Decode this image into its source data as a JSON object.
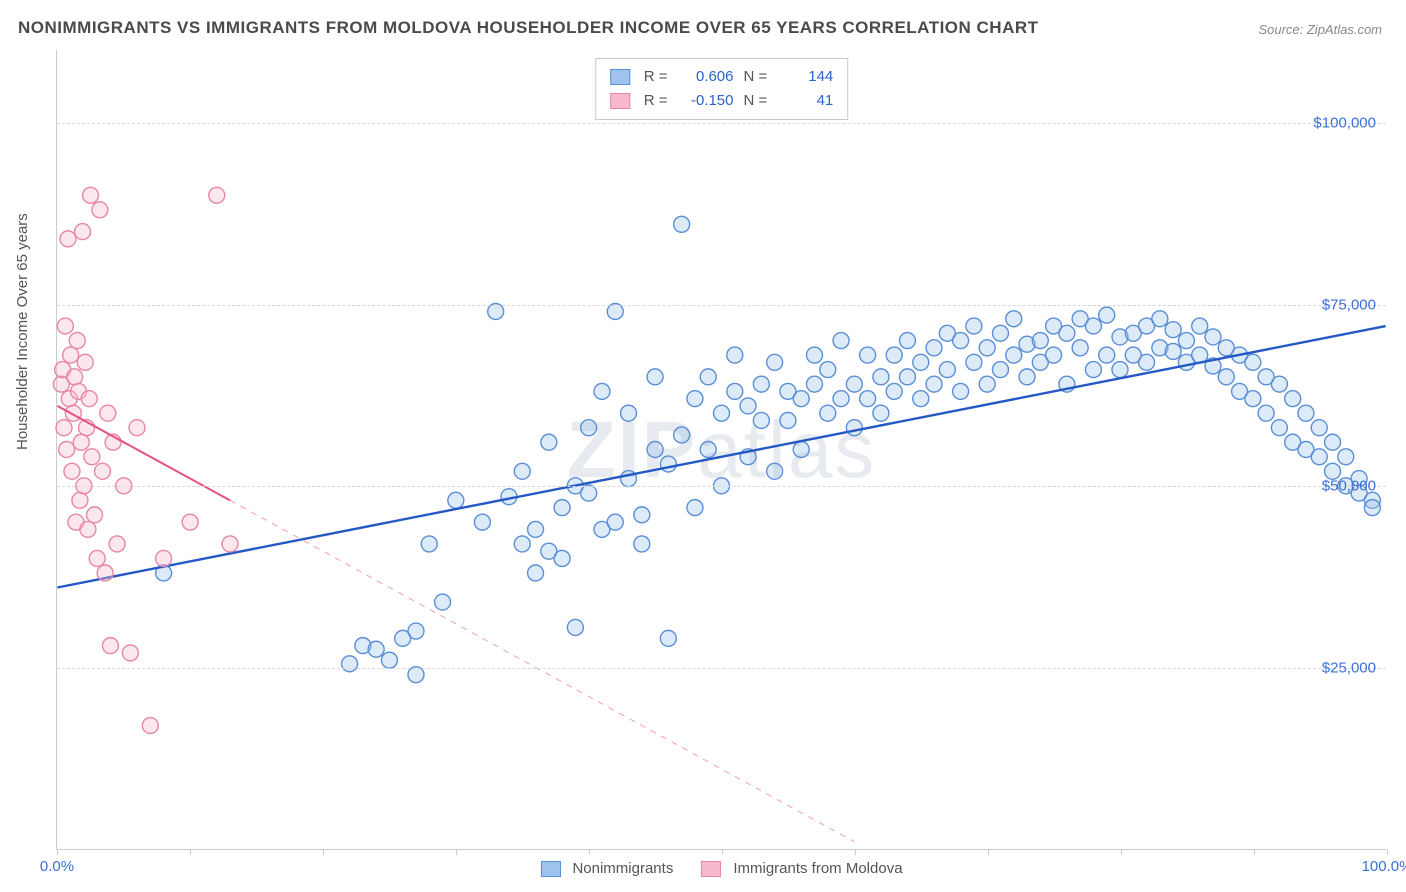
{
  "title": "NONIMMIGRANTS VS IMMIGRANTS FROM MOLDOVA HOUSEHOLDER INCOME OVER 65 YEARS CORRELATION CHART",
  "source": "Source: ZipAtlas.com",
  "ylabel": "Householder Income Over 65 years",
  "watermark_bold": "ZIP",
  "watermark_rest": "atlas",
  "chart": {
    "type": "scatter-with-regression",
    "xlim": [
      0,
      100
    ],
    "ylim": [
      0,
      110000
    ],
    "xtick_positions": [
      0,
      10,
      20,
      30,
      40,
      50,
      60,
      70,
      80,
      90,
      100
    ],
    "xtick_labels_shown": {
      "0": "0.0%",
      "100": "100.0%"
    },
    "ytick_positions": [
      25000,
      50000,
      75000,
      100000
    ],
    "ytick_labels": [
      "$25,000",
      "$50,000",
      "$75,000",
      "$100,000"
    ],
    "background_color": "#ffffff",
    "grid_color": "#d8d8d8",
    "axis_color": "#cccccc",
    "marker_radius": 8,
    "marker_fill_opacity": 0.35,
    "marker_stroke_width": 1.4,
    "series": [
      {
        "name": "Nonimmigrants",
        "color_stroke": "#5a8fd8",
        "color_fill": "#9ec3ec",
        "R": "0.606",
        "N": "144",
        "regression": {
          "x1": 0,
          "y1": 36000,
          "x2": 100,
          "y2": 72000,
          "solid_until_x": 100,
          "stroke": "#2458c5",
          "width": 2.4
        },
        "points": [
          [
            8,
            38000
          ],
          [
            22,
            25500
          ],
          [
            23,
            28000
          ],
          [
            24,
            27500
          ],
          [
            25,
            26000
          ],
          [
            26,
            29000
          ],
          [
            27,
            24000
          ],
          [
            27,
            30000
          ],
          [
            28,
            42000
          ],
          [
            29,
            34000
          ],
          [
            30,
            48000
          ],
          [
            32,
            45000
          ],
          [
            33,
            74000
          ],
          [
            34,
            48500
          ],
          [
            35,
            42000
          ],
          [
            35,
            52000
          ],
          [
            36,
            38000
          ],
          [
            36,
            44000
          ],
          [
            37,
            41000
          ],
          [
            37,
            56000
          ],
          [
            38,
            47000
          ],
          [
            38,
            40000
          ],
          [
            39,
            30500
          ],
          [
            39,
            50000
          ],
          [
            40,
            49000
          ],
          [
            40,
            58000
          ],
          [
            41,
            44000
          ],
          [
            41,
            63000
          ],
          [
            42,
            45000
          ],
          [
            42,
            74000
          ],
          [
            43,
            51000
          ],
          [
            43,
            60000
          ],
          [
            44,
            46000
          ],
          [
            44,
            42000
          ],
          [
            45,
            55000
          ],
          [
            45,
            65000
          ],
          [
            46,
            53000
          ],
          [
            46,
            29000
          ],
          [
            47,
            57000
          ],
          [
            47,
            86000
          ],
          [
            48,
            62000
          ],
          [
            48,
            47000
          ],
          [
            49,
            65000
          ],
          [
            49,
            55000
          ],
          [
            50,
            60000
          ],
          [
            50,
            50000
          ],
          [
            51,
            63000
          ],
          [
            51,
            68000
          ],
          [
            52,
            54000
          ],
          [
            52,
            61000
          ],
          [
            53,
            59000
          ],
          [
            53,
            64000
          ],
          [
            54,
            67000
          ],
          [
            54,
            52000
          ],
          [
            55,
            63000
          ],
          [
            55,
            59000
          ],
          [
            56,
            62000
          ],
          [
            56,
            55000
          ],
          [
            57,
            68000
          ],
          [
            57,
            64000
          ],
          [
            58,
            60000
          ],
          [
            58,
            66000
          ],
          [
            59,
            62000
          ],
          [
            59,
            70000
          ],
          [
            60,
            64000
          ],
          [
            60,
            58000
          ],
          [
            61,
            62000
          ],
          [
            61,
            68000
          ],
          [
            62,
            65000
          ],
          [
            62,
            60000
          ],
          [
            63,
            68000
          ],
          [
            63,
            63000
          ],
          [
            64,
            65000
          ],
          [
            64,
            70000
          ],
          [
            65,
            67000
          ],
          [
            65,
            62000
          ],
          [
            66,
            64000
          ],
          [
            66,
            69000
          ],
          [
            67,
            71000
          ],
          [
            67,
            66000
          ],
          [
            68,
            63000
          ],
          [
            68,
            70000
          ],
          [
            69,
            67000
          ],
          [
            69,
            72000
          ],
          [
            70,
            69000
          ],
          [
            70,
            64000
          ],
          [
            71,
            71000
          ],
          [
            71,
            66000
          ],
          [
            72,
            68000
          ],
          [
            72,
            73000
          ],
          [
            73,
            69500
          ],
          [
            73,
            65000
          ],
          [
            74,
            70000
          ],
          [
            74,
            67000
          ],
          [
            75,
            72000
          ],
          [
            75,
            68000
          ],
          [
            76,
            64000
          ],
          [
            76,
            71000
          ],
          [
            77,
            73000
          ],
          [
            77,
            69000
          ],
          [
            78,
            66000
          ],
          [
            78,
            72000
          ],
          [
            79,
            73500
          ],
          [
            79,
            68000
          ],
          [
            80,
            70500
          ],
          [
            80,
            66000
          ],
          [
            81,
            71000
          ],
          [
            81,
            68000
          ],
          [
            82,
            72000
          ],
          [
            82,
            67000
          ],
          [
            83,
            73000
          ],
          [
            83,
            69000
          ],
          [
            84,
            68500
          ],
          [
            84,
            71500
          ],
          [
            85,
            70000
          ],
          [
            85,
            67000
          ],
          [
            86,
            72000
          ],
          [
            86,
            68000
          ],
          [
            87,
            70500
          ],
          [
            87,
            66500
          ],
          [
            88,
            69000
          ],
          [
            88,
            65000
          ],
          [
            89,
            68000
          ],
          [
            89,
            63000
          ],
          [
            90,
            67000
          ],
          [
            90,
            62000
          ],
          [
            91,
            65000
          ],
          [
            91,
            60000
          ],
          [
            92,
            64000
          ],
          [
            92,
            58000
          ],
          [
            93,
            62000
          ],
          [
            93,
            56000
          ],
          [
            94,
            60000
          ],
          [
            94,
            55000
          ],
          [
            95,
            58000
          ],
          [
            95,
            54000
          ],
          [
            96,
            56000
          ],
          [
            96,
            52000
          ],
          [
            97,
            54000
          ],
          [
            97,
            50000
          ],
          [
            98,
            51000
          ],
          [
            98,
            49000
          ],
          [
            99,
            48000
          ],
          [
            99,
            47000
          ]
        ]
      },
      {
        "name": "Immigrants from Moldova",
        "color_stroke": "#e886a5",
        "color_fill": "#f6b9cb",
        "R": "-0.150",
        "N": "41",
        "regression": {
          "x1": 0,
          "y1": 61000,
          "x2": 60,
          "y2": 1000,
          "solid_until_x": 13,
          "stroke": "#e6517f",
          "width": 2
        },
        "points": [
          [
            0.3,
            64000
          ],
          [
            0.4,
            66000
          ],
          [
            0.5,
            58000
          ],
          [
            0.6,
            72000
          ],
          [
            0.7,
            55000
          ],
          [
            0.8,
            84000
          ],
          [
            0.9,
            62000
          ],
          [
            1.0,
            68000
          ],
          [
            1.1,
            52000
          ],
          [
            1.2,
            60000
          ],
          [
            1.3,
            65000
          ],
          [
            1.4,
            45000
          ],
          [
            1.5,
            70000
          ],
          [
            1.6,
            63000
          ],
          [
            1.7,
            48000
          ],
          [
            1.8,
            56000
          ],
          [
            1.9,
            85000
          ],
          [
            2.0,
            50000
          ],
          [
            2.1,
            67000
          ],
          [
            2.2,
            58000
          ],
          [
            2.3,
            44000
          ],
          [
            2.4,
            62000
          ],
          [
            2.5,
            90000
          ],
          [
            2.6,
            54000
          ],
          [
            2.8,
            46000
          ],
          [
            3.0,
            40000
          ],
          [
            3.2,
            88000
          ],
          [
            3.4,
            52000
          ],
          [
            3.6,
            38000
          ],
          [
            3.8,
            60000
          ],
          [
            4.0,
            28000
          ],
          [
            4.2,
            56000
          ],
          [
            4.5,
            42000
          ],
          [
            5.0,
            50000
          ],
          [
            5.5,
            27000
          ],
          [
            6.0,
            58000
          ],
          [
            7.0,
            17000
          ],
          [
            8.0,
            40000
          ],
          [
            10.0,
            45000
          ],
          [
            12.0,
            90000
          ],
          [
            13.0,
            42000
          ]
        ]
      }
    ]
  },
  "stats_box": {
    "rows": [
      {
        "swatch_fill": "#9ec3ec",
        "swatch_stroke": "#5a8fd8",
        "R": "0.606",
        "N": "144"
      },
      {
        "swatch_fill": "#f6b9cb",
        "swatch_stroke": "#e886a5",
        "R": "-0.150",
        "N": "41"
      }
    ],
    "label_R": "R =",
    "label_N": "N ="
  },
  "legend": {
    "items": [
      {
        "label": "Nonimmigrants",
        "fill": "#9ec3ec",
        "stroke": "#5a8fd8"
      },
      {
        "label": "Immigrants from Moldova",
        "fill": "#f6b9cb",
        "stroke": "#e886a5"
      }
    ]
  }
}
